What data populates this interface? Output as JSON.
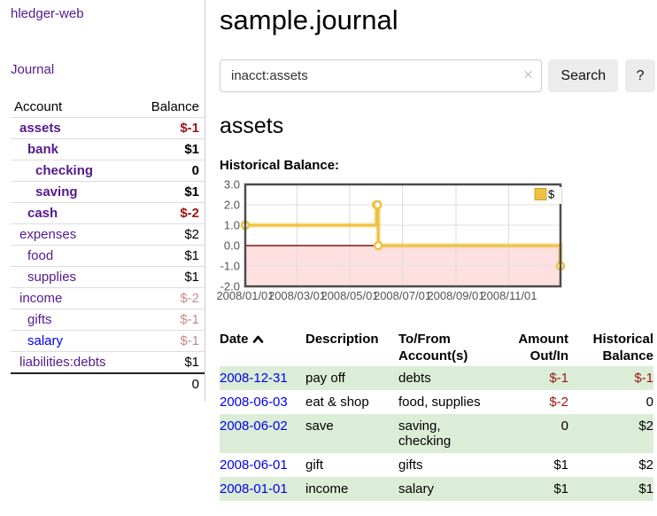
{
  "brand": "hledger-web",
  "colors": {
    "link_purple": "#551a8b",
    "link_blue": "#0000ee",
    "negative_strong": "#9a1515",
    "negative_soft": "#c98b8b",
    "row_green": "#dcedd7",
    "chart_yellow": "#edc240",
    "chart_negative_region": "#ffe0e0",
    "chart_zero_line": "#8b1111"
  },
  "sidebar": {
    "journal_link": "Journal",
    "account_header": "Account",
    "balance_header": "Balance",
    "accounts": [
      {
        "name": "assets",
        "balance": "$-1",
        "indent": 0,
        "bold": true
      },
      {
        "name": "bank",
        "balance": "$1",
        "indent": 1,
        "bold": true
      },
      {
        "name": "checking",
        "balance": "0",
        "indent": 2,
        "bold": true
      },
      {
        "name": "saving",
        "balance": "$1",
        "indent": 2,
        "bold": true
      },
      {
        "name": "cash",
        "balance": "$-2",
        "indent": 1,
        "bold": true
      },
      {
        "name": "expenses",
        "balance": "$2",
        "indent": 0,
        "bold": false
      },
      {
        "name": "food",
        "balance": "$1",
        "indent": 1,
        "bold": false
      },
      {
        "name": "supplies",
        "balance": "$1",
        "indent": 1,
        "bold": false
      },
      {
        "name": "income",
        "balance": "$-2",
        "indent": 0,
        "bold": false
      },
      {
        "name": "gifts",
        "balance": "$-1",
        "indent": 1,
        "bold": false
      },
      {
        "name": "salary",
        "balance": "$-1",
        "indent": 1,
        "bold": false
      },
      {
        "name": "liabilities:debts",
        "balance": "$1",
        "indent": 0,
        "bold": false
      }
    ],
    "total": "0"
  },
  "main": {
    "title": "sample.journal",
    "search": {
      "value": "inacct:assets",
      "clear_icon": "✕",
      "button": "Search",
      "help_button": "?"
    },
    "account_title": "assets",
    "chart_label": "Historical Balance:",
    "register": {
      "headers": {
        "date": "Date",
        "sort_icon": "chevron-up",
        "description": "Description",
        "account": "To/From Account(s)",
        "amount": "Amount Out/In",
        "balance": "Historical Balance"
      },
      "rows": [
        {
          "date": "2008-12-31",
          "description": "pay off",
          "accounts": "debts",
          "amount": "$-1",
          "balance": "$-1"
        },
        {
          "date": "2008-06-03",
          "description": "eat & shop",
          "accounts": "food, supplies",
          "amount": "$-2",
          "balance": "0"
        },
        {
          "date": "2008-06-02",
          "description": "save",
          "accounts": "saving, checking",
          "amount": "0",
          "balance": "$2"
        },
        {
          "date": "2008-06-01",
          "description": "gift",
          "accounts": "gifts",
          "amount": "$1",
          "balance": "$2"
        },
        {
          "date": "2008-01-01",
          "description": "income",
          "accounts": "salary",
          "amount": "$1",
          "balance": "$1"
        }
      ]
    }
  },
  "chart_data": {
    "type": "line",
    "title": "Historical Balance:",
    "step": true,
    "x_range": [
      "2008/01/01",
      "2008/12/31"
    ],
    "ylim": [
      -2,
      3
    ],
    "y_ticks": [
      3.0,
      2.0,
      1.0,
      0.0,
      -1.0,
      -2.0
    ],
    "x_ticks": [
      "2008/01/01",
      "2008/03/01",
      "2008/05/01",
      "2008/07/01",
      "2008/09/01",
      "2008/11/01"
    ],
    "series": [
      {
        "name": "$",
        "color": "#edc240",
        "points": [
          {
            "date": "2008/01/01",
            "value": 1
          },
          {
            "date": "2008/06/01",
            "value": 2
          },
          {
            "date": "2008/06/02",
            "value": 2
          },
          {
            "date": "2008/06/03",
            "value": 0
          },
          {
            "date": "2008/12/31",
            "value": -1
          }
        ]
      }
    ],
    "legend": {
      "label": "$",
      "position": "top-right"
    },
    "negative_region_color": "#ffe0e0",
    "zero_line_color": "#8b1111",
    "grid": true
  }
}
